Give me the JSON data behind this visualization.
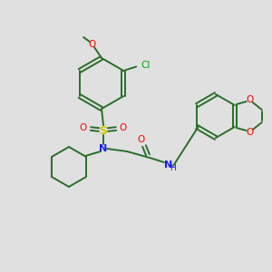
{
  "bg_color": "#e0e0e0",
  "bond_color": "#2a6e2a",
  "colors": {
    "O": "#ff0000",
    "N": "#1a1aff",
    "S": "#cccc00",
    "Cl": "#00aa00",
    "C": "#2a6e2a"
  },
  "figsize": [
    3.0,
    3.0
  ],
  "dpi": 100
}
